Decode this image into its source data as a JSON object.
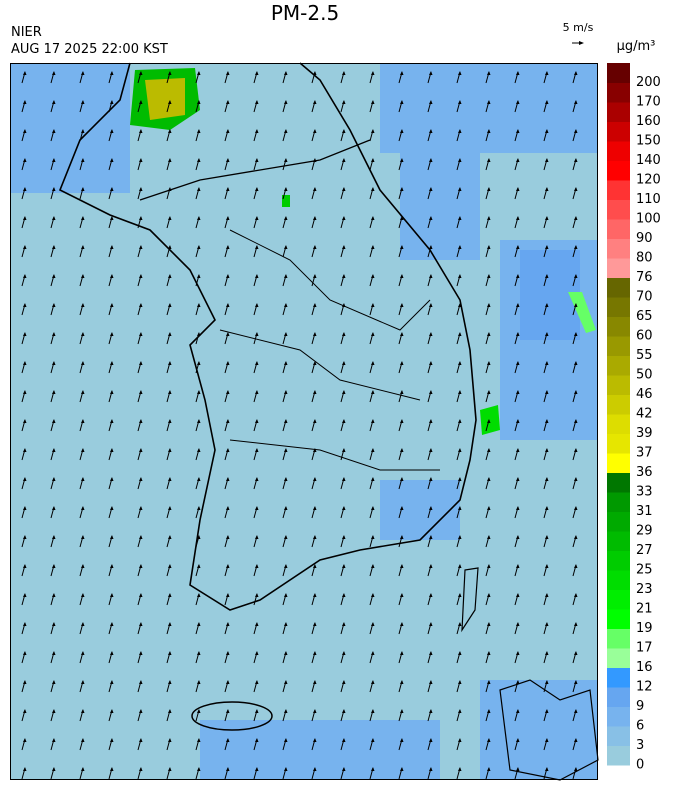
{
  "header": {
    "title": "PM-2.5",
    "source": "NIER",
    "timestamp": "AUG 17 2025 22:00 KST",
    "wind_scale": "5 m/s"
  },
  "colorbar": {
    "unit": "μg/m³",
    "ticks": [
      0,
      3,
      6,
      9,
      12,
      16,
      17,
      19,
      21,
      23,
      25,
      27,
      29,
      31,
      33,
      36,
      37,
      39,
      42,
      46,
      50,
      55,
      60,
      65,
      70,
      76,
      80,
      90,
      100,
      110,
      120,
      140,
      150,
      160,
      170,
      200
    ],
    "colors": [
      "#99ccdd",
      "#88c0e6",
      "#77b3ee",
      "#66a6f0",
      "#3399ff",
      "#99ff99",
      "#66ff66",
      "#00ff00",
      "#00ee00",
      "#00dd00",
      "#00cc00",
      "#00bb00",
      "#00aa00",
      "#009900",
      "#007700",
      "#ffff00",
      "#e6e600",
      "#dddd00",
      "#cccc00",
      "#bbbb00",
      "#aaaa00",
      "#999900",
      "#888800",
      "#777700",
      "#666600",
      "#ff9999",
      "#ff8080",
      "#ff6666",
      "#ff4d4d",
      "#ff3333",
      "#ff0000",
      "#ee0000",
      "#cc0000",
      "#aa0000",
      "#880000",
      "#660000"
    ]
  }
}
